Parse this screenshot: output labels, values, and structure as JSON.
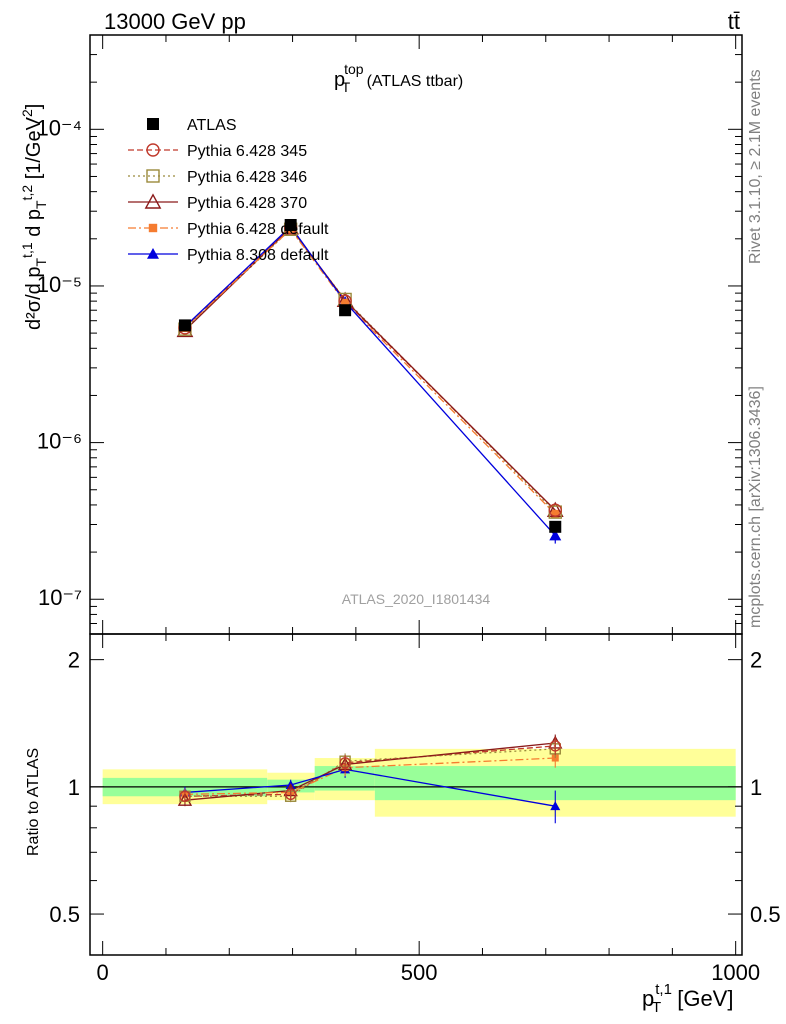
{
  "header": {
    "left": "13000 GeV pp",
    "right": "tt̄"
  },
  "side_labels": {
    "rivet": "Rivet 3.1.10, ≥ 2.1M events",
    "mcplots": "mcplots.cern.ch [arXiv:1306.3436]"
  },
  "colors": {
    "ATLAS": "#000000",
    "Pythia 6.428 345": "#c0392b",
    "Pythia 6.428 346": "#9b8a3c",
    "Pythia 6.428 370": "#8b1a1a",
    "Pythia 6.428 default": "#f57c30",
    "Pythia 8.308 default": "#0000dd",
    "band_inner": "#99ff99",
    "band_outer": "#ffff99"
  },
  "chart_data": [
    {
      "type": "line",
      "panel": "main",
      "title": "p_T^top (ATLAS ttbar)",
      "title_main": "p",
      "title_sup": "top",
      "title_sub": "T",
      "title_rest": " (ATLAS ttbar)",
      "watermark": "ATLAS_2020_I1801434",
      "ylabel": "d²σ/d p_T^{t,1} d p_T^{t,2} [1/GeV²]",
      "yscale": "log",
      "ylim": [
        6e-08,
        0.0004
      ],
      "xlim": [
        -20,
        1010
      ],
      "yticks": [
        "10⁻⁷",
        "10⁻⁶",
        "10⁻⁵",
        "10⁻⁴"
      ],
      "legend_position": "top-left",
      "x": [
        130,
        297,
        383,
        715
      ],
      "series": [
        {
          "name": "ATLAS",
          "marker": "square-filled",
          "values": [
            5.6e-06,
            2.45e-05,
            7e-06,
            2.9e-07
          ]
        },
        {
          "name": "Pythia 6.428 345",
          "marker": "circle-open",
          "dash": "6,3",
          "values": [
            5.4e-06,
            2.35e-05,
            8e-06,
            3.7e-07
          ]
        },
        {
          "name": "Pythia 6.428 346",
          "marker": "square-open",
          "dash": "2,3",
          "values": [
            5.3e-06,
            2.3e-05,
            8.2e-06,
            3.6e-07
          ]
        },
        {
          "name": "Pythia 6.428 370",
          "marker": "triangle-open",
          "dash": "",
          "values": [
            5.2e-06,
            2.35e-05,
            8.1e-06,
            3.7e-07
          ]
        },
        {
          "name": "Pythia 6.428 default",
          "marker": "square-small-filled",
          "dash": "8,3,2,3",
          "values": [
            5.4e-06,
            2.3e-05,
            7.8e-06,
            3.5e-07
          ]
        },
        {
          "name": "Pythia 8.308 default",
          "marker": "triangle-filled",
          "dash": "",
          "values": [
            5.5e-06,
            2.4e-05,
            7.9e-06,
            2.55e-07
          ]
        }
      ]
    },
    {
      "type": "line",
      "panel": "ratio",
      "ylabel": "Ratio to ATLAS",
      "xlabel": "p_T^{t,1} [GeV]",
      "xlabel_main": "p",
      "xlabel_sup": "t,1",
      "xlabel_sub": "T",
      "xlabel_rest": " [GeV]",
      "ylim": [
        0.4,
        2.3
      ],
      "xlim": [
        -20,
        1010
      ],
      "xticks": [
        "0",
        "500",
        "1000"
      ],
      "yticks": [
        "0.5",
        "1",
        "2"
      ],
      "x": [
        130,
        297,
        383,
        715
      ],
      "bands": [
        {
          "x0": 0,
          "x1": 260,
          "inner": [
            0.95,
            1.05
          ],
          "outer": [
            0.91,
            1.1
          ]
        },
        {
          "x0": 260,
          "x1": 335,
          "inner": [
            0.97,
            1.04
          ],
          "outer": [
            0.93,
            1.08
          ]
        },
        {
          "x0": 335,
          "x1": 430,
          "inner": [
            0.98,
            1.12
          ],
          "outer": [
            0.93,
            1.17
          ]
        },
        {
          "x0": 430,
          "x1": 1000,
          "inner": [
            0.93,
            1.12
          ],
          "outer": [
            0.85,
            1.23
          ]
        }
      ],
      "series": [
        {
          "name": "Pythia 6.428 345",
          "values": [
            0.95,
            0.96,
            1.14,
            1.25
          ],
          "err": [
            0.03,
            0.03,
            0.05,
            0.06
          ]
        },
        {
          "name": "Pythia 6.428 346",
          "values": [
            0.95,
            0.95,
            1.15,
            1.23
          ],
          "err": [
            0.03,
            0.03,
            0.05,
            0.06
          ]
        },
        {
          "name": "Pythia 6.428 370",
          "values": [
            0.93,
            0.98,
            1.13,
            1.27
          ],
          "err": [
            0.03,
            0.03,
            0.05,
            0.06
          ]
        },
        {
          "name": "Pythia 6.428 default",
          "values": [
            0.96,
            0.97,
            1.11,
            1.17
          ],
          "err": [
            0.03,
            0.03,
            0.05,
            0.06
          ]
        },
        {
          "name": "Pythia 8.308 default",
          "values": [
            0.97,
            1.01,
            1.1,
            0.9
          ],
          "err": [
            0.03,
            0.03,
            0.05,
            0.08
          ]
        }
      ]
    }
  ]
}
